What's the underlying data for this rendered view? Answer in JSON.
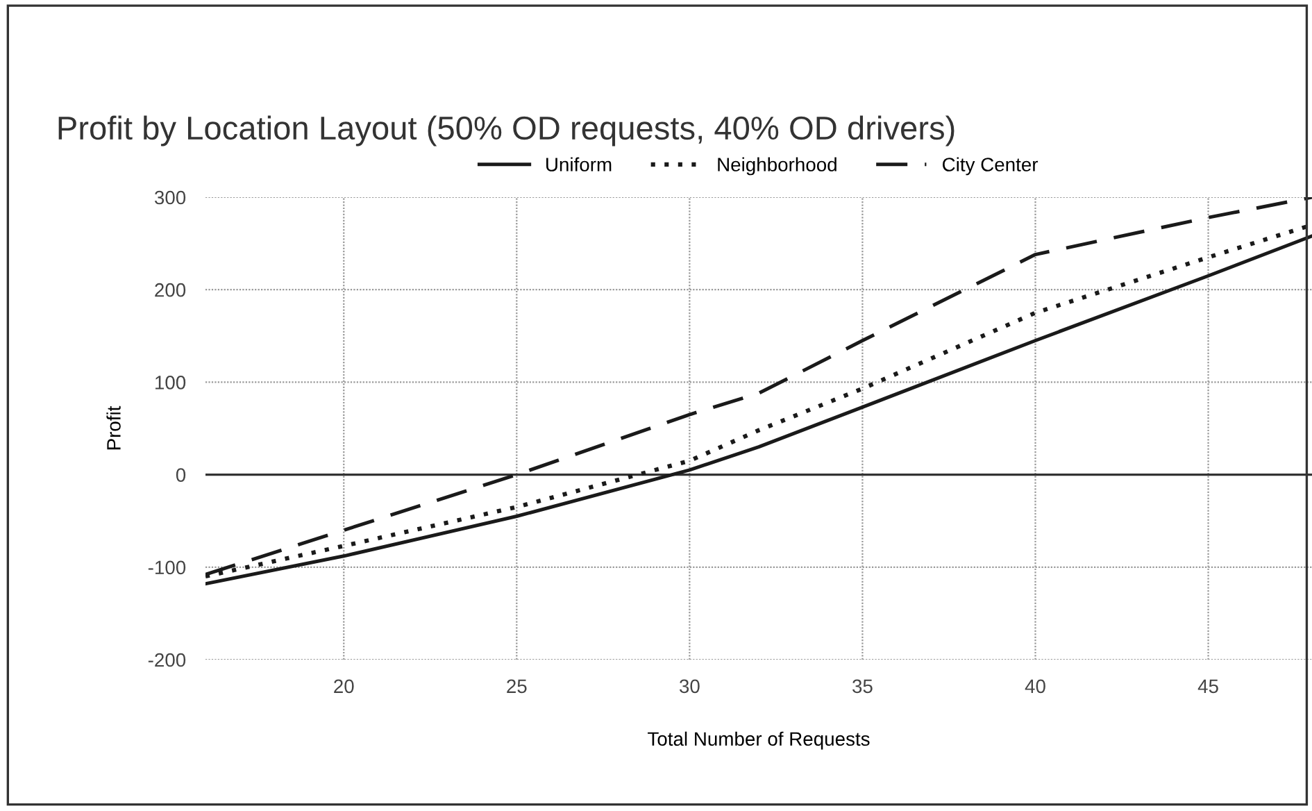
{
  "chart_data": {
    "type": "line",
    "title": "Profit by Location Layout (50% OD requests, 40% OD drivers)",
    "xlabel": "Total Number of Requests",
    "ylabel": "Profit",
    "x": [
      16,
      20,
      25,
      30,
      32,
      35,
      40,
      45,
      48
    ],
    "series": [
      {
        "name": "Uniform",
        "color": "#1a1a1a",
        "line_style": "solid",
        "values": [
          -118,
          -88,
          -45,
          5,
          30,
          73,
          145,
          215,
          258
        ]
      },
      {
        "name": "Neighborhood",
        "color": "#1a1a1a",
        "line_style": "dotted",
        "values": [
          -110,
          -77,
          -35,
          15,
          48,
          93,
          175,
          235,
          270
        ]
      },
      {
        "name": "City Center",
        "color": "#1a1a1a",
        "line_style": "dashed",
        "values": [
          -108,
          -60,
          0,
          65,
          88,
          145,
          238,
          278,
          300
        ]
      }
    ],
    "xlim": [
      16,
      48
    ],
    "xticks": [
      20,
      25,
      30,
      35,
      40,
      45
    ],
    "ylim": [
      -200,
      300
    ],
    "yticks": [
      -200,
      -100,
      0,
      100,
      200,
      300
    ],
    "ref_lines": [
      {
        "axis": "y",
        "value": 0,
        "color": "#333333"
      }
    ],
    "grid": true,
    "legend": "top",
    "marker": "none"
  }
}
